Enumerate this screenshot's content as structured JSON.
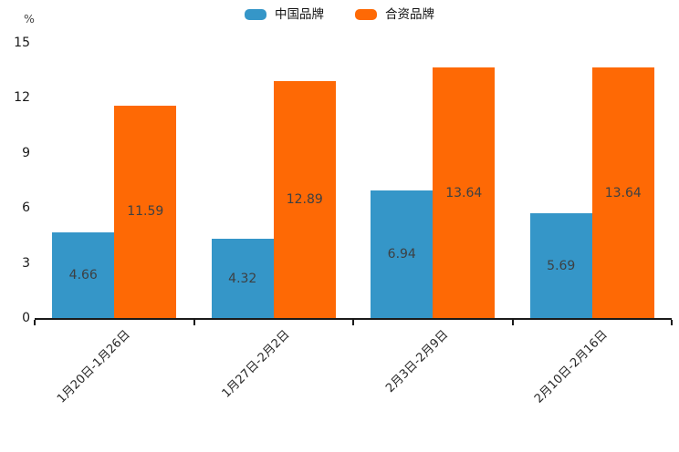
{
  "chart_data": {
    "type": "bar",
    "title": "",
    "unit_label": "%",
    "categories": [
      "1月20日-1月26日",
      "1月27日-2月2日",
      "2月3日-2月9日",
      "2月10日-2月16日"
    ],
    "series": [
      {
        "name": "中国品牌",
        "color": "#3596c8",
        "values": [
          4.66,
          4.32,
          6.94,
          5.69
        ]
      },
      {
        "name": "合资品牌",
        "color": "#fe6905",
        "values": [
          11.59,
          12.89,
          13.64,
          13.64
        ]
      }
    ],
    "ylim": [
      0,
      15
    ],
    "yticks": [
      0,
      3,
      6,
      9,
      12,
      15
    ],
    "grid": false,
    "legend_position": "top-center",
    "value_label_position": "inside-center",
    "value_label_decimals": 2,
    "xtick_rotation_deg": 45,
    "axis_color": "#1a1a1a",
    "value_label_color": "#3d4043"
  }
}
